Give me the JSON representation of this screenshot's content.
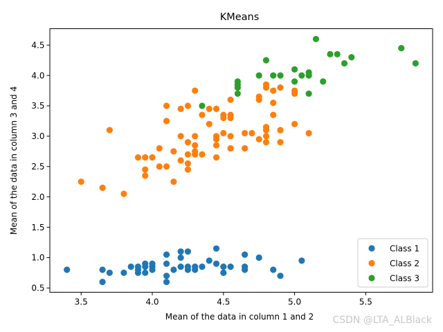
{
  "chart_data": {
    "type": "scatter",
    "title": "KMeans",
    "xlabel": "Mean of the data in column 1 and 2",
    "ylabel": "Mean of the data in column 3 and 4",
    "xlim": [
      3.28,
      5.97
    ],
    "ylim": [
      0.43,
      4.77
    ],
    "xticks": [
      3.5,
      4.0,
      4.5,
      5.0,
      5.5
    ],
    "xtick_labels": [
      "3.5",
      "4.0",
      "4.5",
      "5.0",
      "5.5"
    ],
    "yticks": [
      0.5,
      1.0,
      1.5,
      2.0,
      2.5,
      3.0,
      3.5,
      4.0,
      4.5
    ],
    "ytick_labels": [
      "0.5",
      "1.0",
      "1.5",
      "2.0",
      "2.5",
      "3.0",
      "3.5",
      "4.0",
      "4.5"
    ],
    "grid": false,
    "legend_position": "bottom-right",
    "series": [
      {
        "name": "Class 1",
        "color": "#1f77b4",
        "points": [
          [
            3.4,
            0.8
          ],
          [
            3.65,
            0.8
          ],
          [
            3.65,
            0.6
          ],
          [
            3.7,
            0.75
          ],
          [
            3.8,
            0.75
          ],
          [
            3.85,
            0.85
          ],
          [
            3.9,
            0.75
          ],
          [
            3.9,
            0.8
          ],
          [
            3.9,
            0.85
          ],
          [
            3.95,
            0.9
          ],
          [
            3.95,
            0.75
          ],
          [
            3.95,
            0.85
          ],
          [
            4.0,
            0.8
          ],
          [
            4.0,
            0.85
          ],
          [
            4.0,
            0.9
          ],
          [
            4.1,
            1.05
          ],
          [
            4.1,
            0.9
          ],
          [
            4.1,
            0.7
          ],
          [
            4.1,
            0.6
          ],
          [
            4.15,
            0.8
          ],
          [
            4.2,
            1.1
          ],
          [
            4.2,
            1.0
          ],
          [
            4.2,
            0.85
          ],
          [
            4.25,
            1.1
          ],
          [
            4.25,
            0.85
          ],
          [
            4.25,
            0.8
          ],
          [
            4.3,
            0.85
          ],
          [
            4.3,
            0.8
          ],
          [
            4.35,
            0.85
          ],
          [
            4.4,
            0.95
          ],
          [
            4.45,
            1.15
          ],
          [
            4.45,
            0.9
          ],
          [
            4.5,
            0.85
          ],
          [
            4.5,
            0.75
          ],
          [
            4.55,
            0.85
          ],
          [
            4.65,
            1.05
          ],
          [
            4.65,
            0.85
          ],
          [
            4.65,
            0.8
          ],
          [
            4.75,
            1.0
          ],
          [
            4.85,
            0.8
          ],
          [
            4.9,
            0.7
          ],
          [
            5.05,
            0.95
          ]
        ]
      },
      {
        "name": "Class 2",
        "color": "#ff7f0e",
        "points": [
          [
            3.5,
            2.25
          ],
          [
            3.65,
            2.15
          ],
          [
            3.7,
            3.1
          ],
          [
            3.8,
            2.05
          ],
          [
            3.9,
            2.65
          ],
          [
            3.95,
            2.65
          ],
          [
            3.95,
            2.45
          ],
          [
            3.95,
            2.35
          ],
          [
            4.0,
            2.65
          ],
          [
            4.05,
            2.8
          ],
          [
            4.05,
            2.5
          ],
          [
            4.1,
            3.5
          ],
          [
            4.1,
            3.25
          ],
          [
            4.1,
            2.5
          ],
          [
            4.15,
            2.75
          ],
          [
            4.15,
            2.25
          ],
          [
            4.2,
            3.45
          ],
          [
            4.2,
            3.0
          ],
          [
            4.2,
            2.6
          ],
          [
            4.25,
            3.5
          ],
          [
            4.25,
            2.9
          ],
          [
            4.25,
            2.7
          ],
          [
            4.25,
            2.55
          ],
          [
            4.25,
            2.45
          ],
          [
            4.3,
            3.75
          ],
          [
            4.3,
            3.0
          ],
          [
            4.3,
            2.85
          ],
          [
            4.3,
            2.75
          ],
          [
            4.3,
            2.7
          ],
          [
            4.35,
            3.35
          ],
          [
            4.35,
            2.7
          ],
          [
            4.4,
            3.45
          ],
          [
            4.4,
            3.2
          ],
          [
            4.45,
            3.45
          ],
          [
            4.45,
            3.0
          ],
          [
            4.45,
            2.95
          ],
          [
            4.45,
            2.85
          ],
          [
            4.45,
            2.65
          ],
          [
            4.5,
            3.35
          ],
          [
            4.5,
            3.3
          ],
          [
            4.5,
            3.05
          ],
          [
            4.55,
            3.6
          ],
          [
            4.55,
            3.35
          ],
          [
            4.55,
            3.3
          ],
          [
            4.55,
            3.0
          ],
          [
            4.55,
            2.8
          ],
          [
            4.65,
            3.05
          ],
          [
            4.65,
            2.8
          ],
          [
            4.7,
            3.05
          ],
          [
            4.75,
            3.65
          ],
          [
            4.75,
            3.6
          ],
          [
            4.75,
            2.95
          ],
          [
            4.8,
            3.85
          ],
          [
            4.8,
            3.8
          ],
          [
            4.8,
            3.15
          ],
          [
            4.8,
            3.1
          ],
          [
            4.8,
            3.0
          ],
          [
            4.8,
            2.9
          ],
          [
            4.85,
            3.75
          ],
          [
            4.85,
            3.55
          ],
          [
            4.85,
            3.35
          ],
          [
            4.9,
            3.8
          ],
          [
            4.9,
            3.1
          ],
          [
            4.9,
            2.9
          ],
          [
            5.0,
            3.75
          ],
          [
            5.0,
            3.7
          ],
          [
            5.0,
            3.2
          ],
          [
            5.1,
            3.05
          ]
        ]
      },
      {
        "name": "Class 3",
        "color": "#2ca02c",
        "points": [
          [
            4.35,
            3.5
          ],
          [
            4.6,
            3.9
          ],
          [
            4.6,
            3.85
          ],
          [
            4.6,
            3.8
          ],
          [
            4.6,
            3.7
          ],
          [
            4.75,
            4.0
          ],
          [
            4.8,
            4.25
          ],
          [
            4.85,
            4.0
          ],
          [
            4.9,
            4.0
          ],
          [
            5.0,
            4.1
          ],
          [
            5.0,
            3.9
          ],
          [
            5.05,
            4.0
          ],
          [
            5.1,
            4.05
          ],
          [
            5.1,
            4.0
          ],
          [
            5.1,
            3.7
          ],
          [
            5.15,
            4.6
          ],
          [
            5.2,
            3.9
          ],
          [
            5.25,
            4.35
          ],
          [
            5.3,
            4.35
          ],
          [
            5.35,
            4.2
          ],
          [
            5.4,
            4.3
          ],
          [
            5.75,
            4.45
          ],
          [
            5.85,
            4.2
          ]
        ]
      }
    ]
  },
  "watermark": "CSDN @LTA_ALBlack"
}
